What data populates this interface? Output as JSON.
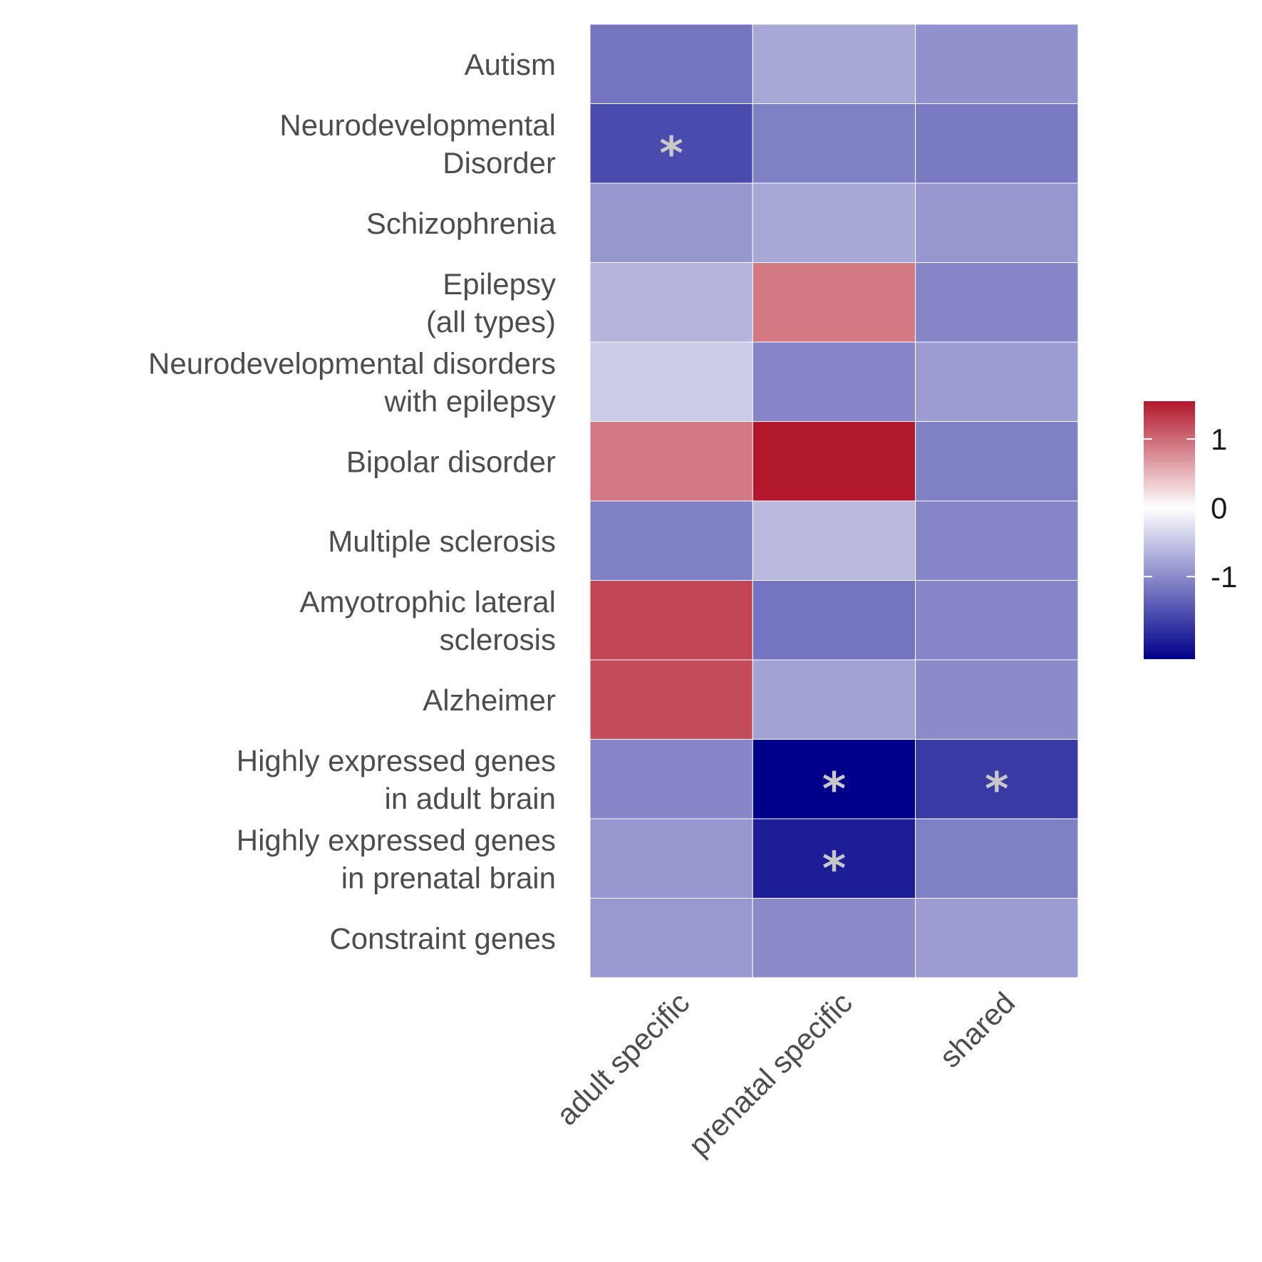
{
  "chart_data": {
    "type": "heatmap",
    "title": "",
    "xlabel": "",
    "ylabel": "",
    "columns": [
      "adult specific",
      "prenatal specific",
      "shared"
    ],
    "rows": [
      [
        "Autism"
      ],
      [
        "Neurodevelopmental",
        "Disorder"
      ],
      [
        "Schizophrenia"
      ],
      [
        "Epilepsy",
        "(all types)"
      ],
      [
        "Neurodevelopmental disorders",
        "with epilepsy"
      ],
      [
        "Bipolar disorder"
      ],
      [
        "Multiple sclerosis"
      ],
      [
        "Amyotrophic lateral",
        "sclerosis"
      ],
      [
        "Alzheimer"
      ],
      [
        "Highly expressed genes",
        "in adult brain"
      ],
      [
        "Highly expressed genes",
        "in prenatal brain"
      ],
      [
        "Constraint genes"
      ]
    ],
    "values": [
      [
        -1.2,
        -0.75,
        -0.95
      ],
      [
        -1.55,
        -1.1,
        -1.15
      ],
      [
        -0.9,
        -0.75,
        -0.9
      ],
      [
        -0.65,
        0.9,
        -1.05
      ],
      [
        -0.45,
        -1.05,
        -0.85
      ],
      [
        0.9,
        1.55,
        -1.1
      ],
      [
        -1.1,
        -0.6,
        -1.05
      ],
      [
        1.25,
        -1.2,
        -1.05
      ],
      [
        1.2,
        -0.8,
        -1.0
      ],
      [
        -1.05,
        -2.2,
        -1.7
      ],
      [
        -0.9,
        -1.95,
        -1.1
      ],
      [
        -0.88,
        -1.0,
        -0.85
      ]
    ],
    "significant": [
      [
        false,
        false,
        false
      ],
      [
        true,
        false,
        false
      ],
      [
        false,
        false,
        false
      ],
      [
        false,
        false,
        false
      ],
      [
        false,
        false,
        false
      ],
      [
        false,
        false,
        false
      ],
      [
        false,
        false,
        false
      ],
      [
        false,
        false,
        false
      ],
      [
        false,
        false,
        false
      ],
      [
        false,
        true,
        true
      ],
      [
        false,
        true,
        false
      ],
      [
        false,
        false,
        false
      ]
    ],
    "significance_marker": "*",
    "color_scale": {
      "low": "#00008b",
      "mid": "#ffffff",
      "high": "#b2182b",
      "range": [
        -2.2,
        1.55
      ],
      "ticks": [
        1,
        0,
        -1
      ],
      "tick_labels": [
        "1",
        "0",
        "-1"
      ]
    },
    "legend_position": "right",
    "grid": false
  }
}
